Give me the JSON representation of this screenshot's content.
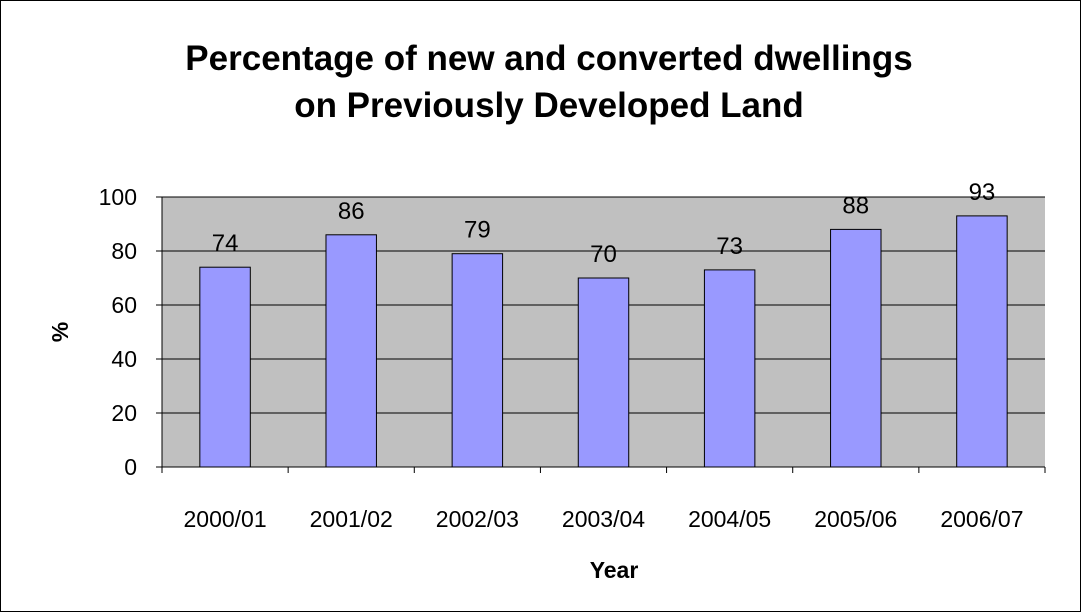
{
  "chart_data": {
    "type": "bar",
    "title": [
      "Percentage of new and converted dwellings",
      "on Previously Developed Land"
    ],
    "xlabel": "Year",
    "ylabel": "%",
    "categories": [
      "2000/01",
      "2001/02",
      "2002/03",
      "2003/04",
      "2004/05",
      "2005/06",
      "2006/07"
    ],
    "values": [
      74,
      86,
      79,
      70,
      73,
      88,
      93
    ],
    "ylim": [
      0,
      100
    ],
    "yticks": [
      0,
      20,
      40,
      60,
      80,
      100
    ],
    "grid": "horizontal",
    "legend": "none",
    "colors": {
      "bar_fill": "#9999ff",
      "plot_background": "#c0c0c0",
      "outline": "#000000"
    }
  }
}
